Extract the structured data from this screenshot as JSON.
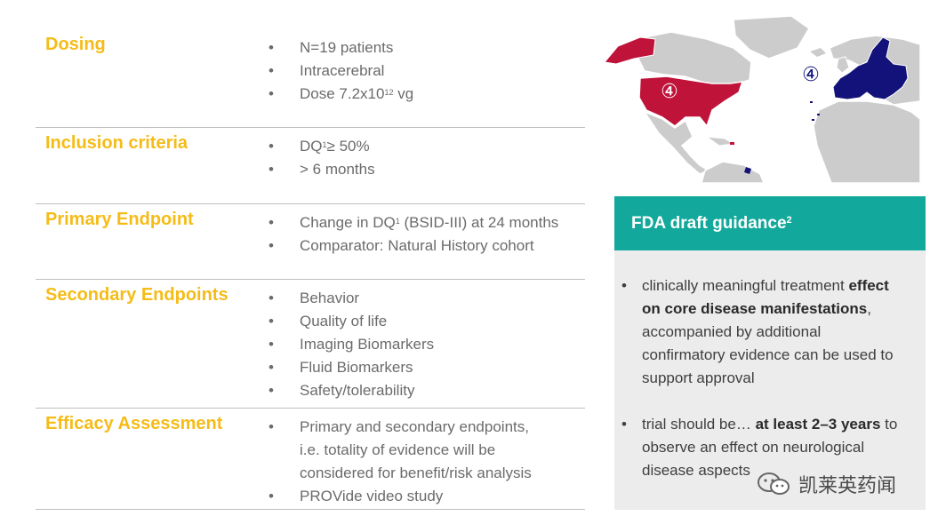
{
  "table": {
    "rows": [
      {
        "title": "Dosing",
        "bullets": [
          "N=19 patients",
          "Intracerebral"
        ],
        "dose": {
          "prefix": "Dose 7.2x10",
          "exp": "12",
          "suffix": " vg"
        }
      },
      {
        "title": "Inclusion criteria",
        "dq": {
          "prefix": "DQ",
          "sup": "1",
          "suffix": "≥ 50%"
        },
        "bullets": [
          "> 6 months"
        ]
      },
      {
        "title": "Primary Endpoint",
        "dq": {
          "prefix": "Change in DQ",
          "sup": "1",
          "suffix": " (BSID-III) at 24 months"
        },
        "bullets": [
          "Comparator: Natural History cohort"
        ]
      },
      {
        "title": "Secondary Endpoints",
        "bullets": [
          "Behavior",
          "Quality of life",
          "Imaging Biomarkers",
          "Fluid Biomarkers",
          "Safety/tolerability"
        ]
      },
      {
        "title": "Efficacy Assessment",
        "bullets": [
          "Primary and secondary endpoints,",
          "i.e. totality of evidence will be",
          "considered for benefit/risk analysis",
          "PROVide video study"
        ]
      }
    ]
  },
  "map": {
    "us_marker": "④",
    "eu_marker": "④",
    "us_color": "#c0133a",
    "eu_color": "#12127a"
  },
  "fda": {
    "title": "FDA draft guidance",
    "title_sup": "2",
    "b1_pre": "clinically meaningful treatment ",
    "b1_bold": "effect on core disease manifestations",
    "b1_post": ", accompanied by additional confirmatory evidence can be used to support approval",
    "b2_pre": "trial should be… ",
    "b2_bold": "at least 2–3 years",
    "b2_post": " to observe an effect on neurological disease aspects"
  },
  "watermark": "凯莱英药闻",
  "colors": {
    "accent_yellow": "#f5bc18",
    "teal": "#12a89b",
    "panel_gray": "#ececec"
  }
}
